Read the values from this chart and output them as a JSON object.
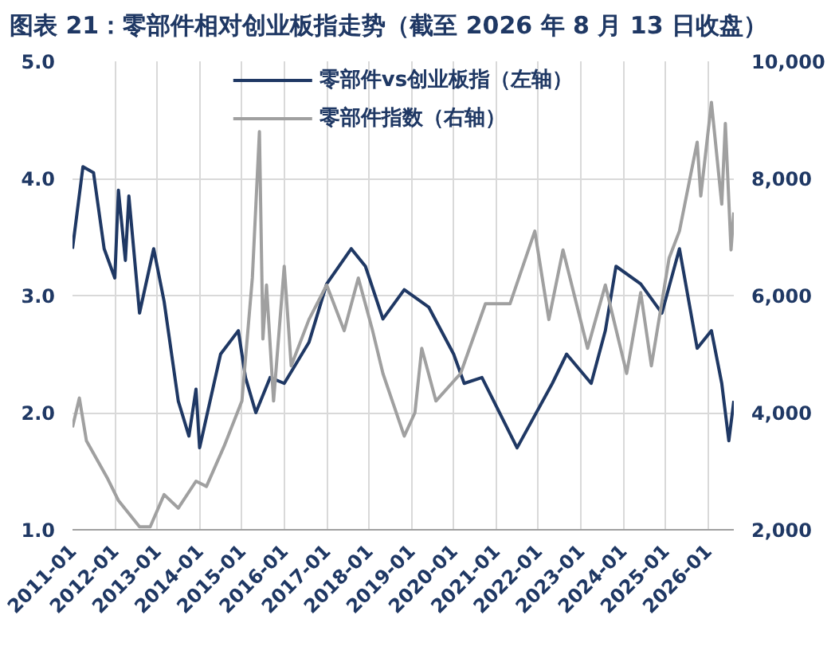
{
  "chart_data": {
    "type": "line",
    "title": "图表 21：零部件相对创业板指走势（截至 2026 年 8 月 13 日收盘）",
    "xlim": [
      "2011-01-01",
      "2026-08-13"
    ],
    "xticks": [
      {
        "value": "2011-01",
        "label": "2011-01"
      },
      {
        "value": "2012-01",
        "label": "2012-01"
      },
      {
        "value": "2013-01",
        "label": "2013-01"
      },
      {
        "value": "2014-01",
        "label": "2014-01"
      },
      {
        "value": "2015-01",
        "label": "2015-01"
      },
      {
        "value": "2016-01",
        "label": "2016-01"
      },
      {
        "value": "2017-01",
        "label": "2017-01"
      },
      {
        "value": "2018-01",
        "label": "2018-01"
      },
      {
        "value": "2019-01",
        "label": "2019-01"
      },
      {
        "value": "2020-01",
        "label": "2020-01"
      },
      {
        "value": "2021-01",
        "label": "2021-01"
      },
      {
        "value": "2022-01",
        "label": "2022-01"
      },
      {
        "value": "2023-01",
        "label": "2023-01"
      },
      {
        "value": "2024-01",
        "label": "2024-01"
      },
      {
        "value": "2025-01",
        "label": "2025-01"
      },
      {
        "value": "2026-01",
        "label": "2026-01"
      }
    ],
    "ylim": [
      1,
      5
    ],
    "yticks": [
      {
        "value": 1,
        "label": "1.0"
      },
      {
        "value": 2,
        "label": "2.0"
      },
      {
        "value": 3,
        "label": "3.0"
      },
      {
        "value": 4,
        "label": "4.0"
      },
      {
        "value": 5,
        "label": "5.0"
      }
    ],
    "y2lim": [
      2000,
      10000
    ],
    "y2ticks": [
      {
        "value": 2000,
        "label": "2,000"
      },
      {
        "value": 4000,
        "label": "4,000"
      },
      {
        "value": 6000,
        "label": "6,000"
      },
      {
        "value": 8000,
        "label": "8,000"
      },
      {
        "value": 10000,
        "label": "10,000"
      }
    ],
    "grid": true,
    "legend": "top",
    "line_style": "solid",
    "series": [
      {
        "name": "零部件vs创业板指（左轴）",
        "color": "#1f3864",
        "x": [
          "2011-01",
          "2011-04",
          "2011-07",
          "2011-10",
          "2012-01",
          "2012-02",
          "2012-04",
          "2012-05",
          "2012-08",
          "2012-12",
          "2013-03",
          "2013-07",
          "2013-10",
          "2013-12",
          "2014-01",
          "2014-07",
          "2014-12",
          "2015-02",
          "2015-05",
          "2015-09",
          "2016-01",
          "2016-08",
          "2017-01",
          "2017-08",
          "2017-12",
          "2018-05",
          "2018-11",
          "2019-06",
          "2020-01",
          "2020-04",
          "2020-09",
          "2021-07",
          "2022-05",
          "2022-09",
          "2023-04",
          "2023-08",
          "2023-11",
          "2024-06",
          "2024-12",
          "2025-05",
          "2025-10",
          "2026-02",
          "2026-05",
          "2026-07",
          "2026-08-13"
        ],
        "values": [
          3.4,
          4.1,
          4.05,
          3.4,
          3.15,
          3.9,
          3.3,
          3.85,
          2.85,
          3.4,
          2.95,
          2.1,
          1.8,
          2.2,
          1.7,
          2.5,
          2.7,
          2.3,
          2.0,
          2.3,
          2.25,
          2.6,
          3.1,
          3.4,
          3.25,
          2.8,
          3.05,
          2.9,
          2.5,
          2.25,
          2.3,
          1.7,
          2.25,
          2.5,
          2.25,
          2.7,
          3.25,
          3.1,
          2.85,
          3.4,
          2.55,
          2.7,
          2.25,
          1.76,
          2.1
        ]
      },
      {
        "name": "零部件指数（右轴）",
        "color": "#a0a0a0",
        "axis": "y2",
        "x": [
          "2011-01",
          "2011-03",
          "2011-05",
          "2011-11",
          "2012-02",
          "2012-08",
          "2012-11",
          "2013-03",
          "2013-07",
          "2013-12",
          "2014-03",
          "2014-08",
          "2015-01",
          "2015-04",
          "2015-06",
          "2015-07",
          "2015-08",
          "2015-10",
          "2016-01",
          "2016-03",
          "2016-08",
          "2017-01",
          "2017-06",
          "2017-10",
          "2018-02",
          "2018-05",
          "2018-11",
          "2019-02",
          "2019-04",
          "2019-08",
          "2020-03",
          "2020-10",
          "2021-05",
          "2021-12",
          "2022-04",
          "2022-08",
          "2023-03",
          "2023-08",
          "2024-02",
          "2024-06",
          "2024-09",
          "2025-02",
          "2025-05",
          "2025-10",
          "2025-11",
          "2026-02",
          "2026-05",
          "2026-06",
          "2026-07-20",
          "2026-08-13"
        ],
        "values": [
          3750,
          4250,
          3520,
          2870,
          2500,
          2050,
          2050,
          2600,
          2370,
          2830,
          2740,
          3430,
          4200,
          6300,
          8800,
          5260,
          6180,
          4200,
          6500,
          4800,
          5590,
          6180,
          5400,
          6300,
          5400,
          4670,
          3600,
          4000,
          5100,
          4200,
          4670,
          5860,
          5860,
          7100,
          5590,
          6780,
          5100,
          6180,
          4670,
          6050,
          4800,
          6640,
          7100,
          8620,
          7700,
          9300,
          7560,
          8940,
          6780,
          7420
        ]
      }
    ]
  }
}
